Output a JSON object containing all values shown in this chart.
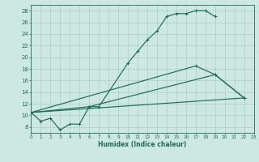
{
  "xlabel": "Humidex (Indice chaleur)",
  "xlim": [
    0,
    23
  ],
  "ylim": [
    7,
    29
  ],
  "yticks": [
    8,
    10,
    12,
    14,
    16,
    18,
    20,
    22,
    24,
    26,
    28
  ],
  "xticks": [
    0,
    1,
    2,
    3,
    4,
    5,
    6,
    7,
    8,
    9,
    10,
    11,
    12,
    13,
    14,
    15,
    16,
    17,
    18,
    19,
    20,
    21,
    22,
    23
  ],
  "bg_color": "#cce8e0",
  "line_color": "#1e6b58",
  "grid_color": "#aacfc5",
  "line1_x": [
    0,
    1,
    2,
    3,
    4,
    5,
    6,
    7,
    10,
    11,
    12,
    13,
    14,
    15,
    16,
    17,
    18,
    19
  ],
  "line1_y": [
    10.5,
    9.0,
    9.5,
    7.5,
    8.5,
    8.5,
    11.5,
    11.5,
    19.0,
    21.0,
    23.0,
    24.5,
    27.0,
    27.5,
    27.5,
    28.0,
    28.0,
    27.0
  ],
  "line2_x": [
    0,
    17,
    19,
    22
  ],
  "line2_y": [
    10.5,
    18.5,
    17.0,
    13.0
  ],
  "line3_x": [
    0,
    6,
    19,
    22
  ],
  "line3_y": [
    10.5,
    11.5,
    17.0,
    13.0
  ],
  "line4_x": [
    0,
    22
  ],
  "line4_y": [
    10.5,
    13.0
  ]
}
